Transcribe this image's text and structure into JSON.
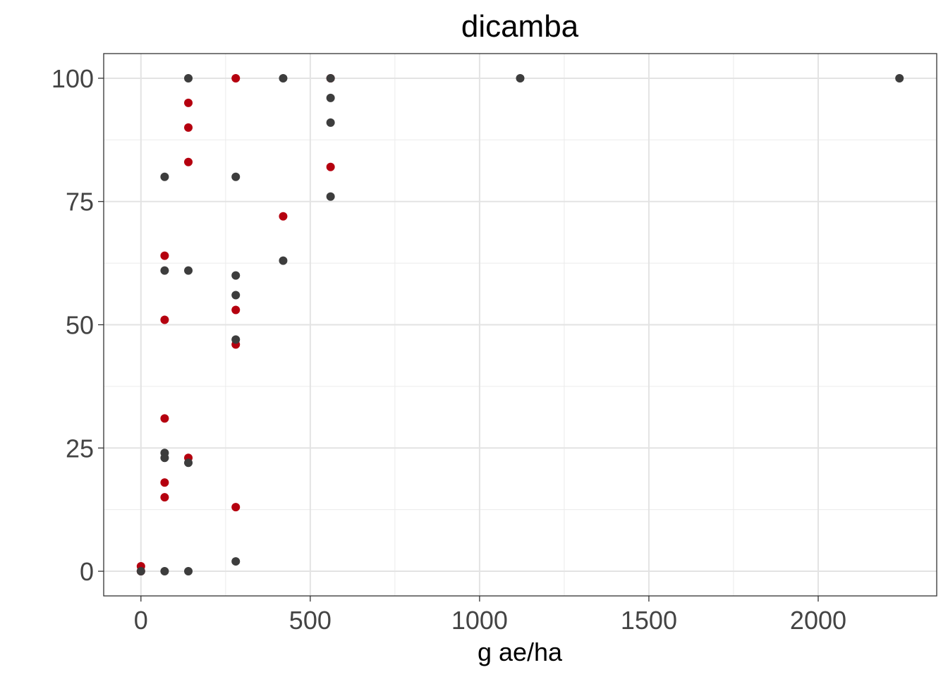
{
  "chart_data": {
    "type": "scatter",
    "title": "dicamba",
    "xlabel": "g ae/ha",
    "ylabel": "",
    "xlim": [
      -110,
      2350
    ],
    "ylim": [
      -5,
      105
    ],
    "xticks": [
      0,
      500,
      1000,
      1500,
      2000
    ],
    "xtick_labels": [
      "0",
      "500",
      "1000",
      "1500",
      "2000"
    ],
    "yticks": [
      0,
      25,
      50,
      75,
      100
    ],
    "ytick_labels": [
      "0",
      "25",
      "50",
      "75",
      "100"
    ],
    "x_minor_ticks": [
      250,
      750,
      1250,
      1750
    ],
    "y_minor_ticks": [
      12.5,
      37.5,
      62.5,
      87.5
    ],
    "grid": true,
    "legend": "none",
    "series": [
      {
        "color": "#b5000f",
        "points": [
          {
            "x": 0,
            "y": 0
          },
          {
            "x": 0,
            "y": 1
          },
          {
            "x": 70,
            "y": 64
          },
          {
            "x": 70,
            "y": 51
          },
          {
            "x": 70,
            "y": 31
          },
          {
            "x": 70,
            "y": 18
          },
          {
            "x": 70,
            "y": 15
          },
          {
            "x": 140,
            "y": 95
          },
          {
            "x": 140,
            "y": 90
          },
          {
            "x": 140,
            "y": 83
          },
          {
            "x": 140,
            "y": 23
          },
          {
            "x": 280,
            "y": 100
          },
          {
            "x": 280,
            "y": 53
          },
          {
            "x": 280,
            "y": 46
          },
          {
            "x": 280,
            "y": 13
          },
          {
            "x": 420,
            "y": 72
          },
          {
            "x": 560,
            "y": 100
          },
          {
            "x": 560,
            "y": 82
          }
        ]
      },
      {
        "color": "#3d3d3d",
        "points": [
          {
            "x": 0,
            "y": 0
          },
          {
            "x": 70,
            "y": 80
          },
          {
            "x": 70,
            "y": 61
          },
          {
            "x": 70,
            "y": 24
          },
          {
            "x": 70,
            "y": 23
          },
          {
            "x": 70,
            "y": 0
          },
          {
            "x": 140,
            "y": 100
          },
          {
            "x": 140,
            "y": 61
          },
          {
            "x": 140,
            "y": 22
          },
          {
            "x": 140,
            "y": 0
          },
          {
            "x": 280,
            "y": 80
          },
          {
            "x": 280,
            "y": 60
          },
          {
            "x": 280,
            "y": 56
          },
          {
            "x": 280,
            "y": 47
          },
          {
            "x": 280,
            "y": 2
          },
          {
            "x": 420,
            "y": 100
          },
          {
            "x": 420,
            "y": 63
          },
          {
            "x": 560,
            "y": 100
          },
          {
            "x": 560,
            "y": 96
          },
          {
            "x": 560,
            "y": 91
          },
          {
            "x": 560,
            "y": 76
          },
          {
            "x": 1120,
            "y": 100
          },
          {
            "x": 2240,
            "y": 100
          }
        ]
      }
    ]
  }
}
